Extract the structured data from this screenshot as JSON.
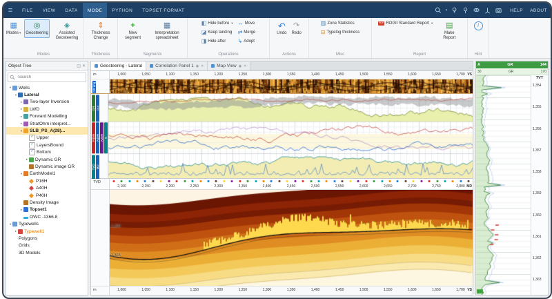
{
  "titlebar": {
    "menus": [
      "FILE",
      "VIEW",
      "DATA",
      "MODE",
      "PYTHON",
      "TOPSET FORMAT"
    ],
    "active_menu": "MODE",
    "help": "HELP",
    "about": "ABOUT"
  },
  "icons": {
    "titlebar": [
      "search",
      "bulb",
      "pin",
      "eye",
      "axes",
      "camera"
    ]
  },
  "ribbon": {
    "modes": "Modes",
    "geosteering": "Geosteering",
    "assisted_geosteering": "Assisted Geosteering",
    "thickness_change": "Thickness Change",
    "new_segment": "New segment",
    "interpretation_spreadsheet": "Interpretation spreadsheet",
    "hide_before": "Hide before",
    "keep_landing": "Keep landing",
    "hide_after": "Hide after",
    "move": "Move",
    "merge": "Merge",
    "adopt": "Adopt",
    "undo": "Undo",
    "redo": "Redo",
    "zone_statistics": "Zone Statistics",
    "typelog_thickness": "Typelog thickness",
    "rogii_standard_report": "ROGII Standard Report",
    "make_report": "Make Report",
    "captions": {
      "modes": "Modes",
      "thickness": "Thickness",
      "segments": "Segments",
      "operations": "Operations",
      "actions": "Actions",
      "misc": "Misc",
      "report": "Report",
      "hint": "Hint"
    }
  },
  "object_tree": {
    "title": "Object Tree",
    "search_placeholder": "Search",
    "items": [
      {
        "label": "Wells",
        "level": 0,
        "arrow": "down",
        "icon": "wells"
      },
      {
        "label": "Lateral",
        "level": 1,
        "arrow": "down",
        "icon": "well",
        "bold": true
      },
      {
        "label": "Two-layer Inversion",
        "level": 2,
        "arrow": "right",
        "icon": "inversion"
      },
      {
        "label": "LWD",
        "level": 2,
        "arrow": "right",
        "icon": "folder"
      },
      {
        "label": "Forward Modelling",
        "level": 2,
        "arrow": "right",
        "icon": "chart"
      },
      {
        "label": "StratOhm interpret...",
        "level": 2,
        "arrow": "right",
        "icon": "strat"
      },
      {
        "label": "SLB_PS_A(28)...",
        "level": 2,
        "arrow": "down",
        "icon": "interp",
        "bold": true,
        "selected": true
      },
      {
        "label": "Upper",
        "level": 3,
        "icon": "check-green"
      },
      {
        "label": "LayersBound",
        "level": 3,
        "icon": "check-teal"
      },
      {
        "label": "Bottom",
        "level": 3,
        "icon": "check-blue"
      },
      {
        "label": "Dynamic GR",
        "level": 3,
        "arrow": "right",
        "icon": "curve"
      },
      {
        "label": "Dynamic image GR",
        "level": 3,
        "icon": "image"
      },
      {
        "label": "EarthModel1",
        "level": 2,
        "arrow": "down",
        "icon": "earth"
      },
      {
        "label": "P16H",
        "level": 3,
        "icon": "diamond-orange"
      },
      {
        "label": "A40H",
        "level": 3,
        "icon": "diamond-red"
      },
      {
        "label": "P40H",
        "level": 3,
        "icon": "diamond-orange"
      },
      {
        "label": "Density Image",
        "level": 2,
        "icon": "image"
      },
      {
        "label": "Topset1",
        "level": 2,
        "arrow": "right",
        "icon": "topset",
        "bold": true
      },
      {
        "label": "OWC -1366.8",
        "level": 2,
        "icon": "owc"
      },
      {
        "label": "Typewells",
        "level": 0,
        "arrow": "down",
        "icon": "wells"
      },
      {
        "label": "Typewell1",
        "level": 1,
        "arrow": "right",
        "icon": "typewell",
        "color": "#e07b00"
      },
      {
        "label": "Polygons",
        "level": 0,
        "icon": "none"
      },
      {
        "label": "Grids",
        "level": 0,
        "icon": "none"
      },
      {
        "label": "3D Models",
        "level": 0,
        "icon": "none"
      }
    ]
  },
  "tabs": [
    {
      "label": "Geosteering - Lateral",
      "active": true
    },
    {
      "label": "Correlation Panel 1",
      "active": false
    },
    {
      "label": "Map View",
      "active": false
    }
  ],
  "rulers": {
    "top": {
      "unit": "m",
      "end": "VS",
      "ticks": [
        "1,000",
        "1,050",
        "1,100",
        "1,150",
        "1,200",
        "1,250",
        "1,300",
        "1,350",
        "1,400",
        "1,450",
        "1,500",
        "1,550",
        "1,600",
        "1,650",
        "1,700"
      ]
    },
    "md": {
      "left": "TVD",
      "end": "MD",
      "ticks": [
        "2,100",
        "2,150",
        "2,200",
        "2,250",
        "2,300",
        "2,350",
        "2,400",
        "2,450",
        "2,500",
        "2,550",
        "2,600",
        "2,650",
        "2,700",
        "2,750",
        "2,800"
      ]
    },
    "bottom": {
      "unit": "m",
      "end": "VS",
      "ticks": [
        "1,000",
        "1,050",
        "1,100",
        "1,150",
        "1,200",
        "1,250",
        "1,300",
        "1,350",
        "1,400",
        "1,450",
        "1,500",
        "1,550",
        "1,600",
        "1,650",
        "1,700"
      ]
    }
  },
  "section": {
    "depth_labels": [
      "1,360",
      "1,365"
    ]
  },
  "track_chips": {
    "strip": [
      {
        "text": "GR img",
        "color": "#1565c0"
      }
    ],
    "t1": [
      {
        "text": "GR",
        "color": "#2e7d32"
      },
      {
        "text": "144",
        "color": "#1565c0"
      }
    ],
    "t2": [
      {
        "text": "P40H",
        "color": "#c62828"
      },
      {
        "text": "A40H",
        "color": "#1565c0"
      },
      {
        "text": "A28H",
        "color": "#6a1b9a"
      },
      {
        "text": "S",
        "color": "#00838f"
      }
    ],
    "t3": [
      {
        "text": "TVD",
        "color": "#00838f"
      },
      {
        "text": "MD",
        "color": "#1565c0"
      }
    ]
  },
  "right_track": {
    "group": "A",
    "curve": "GR",
    "value": "144",
    "min": "30",
    "max": "170",
    "axis": "TVT",
    "depths": [
      "1,354",
      "1,355",
      "1,356",
      "1,357",
      "1,358",
      "1,359",
      "1,360",
      "1,361",
      "1,362",
      "1,363"
    ]
  }
}
